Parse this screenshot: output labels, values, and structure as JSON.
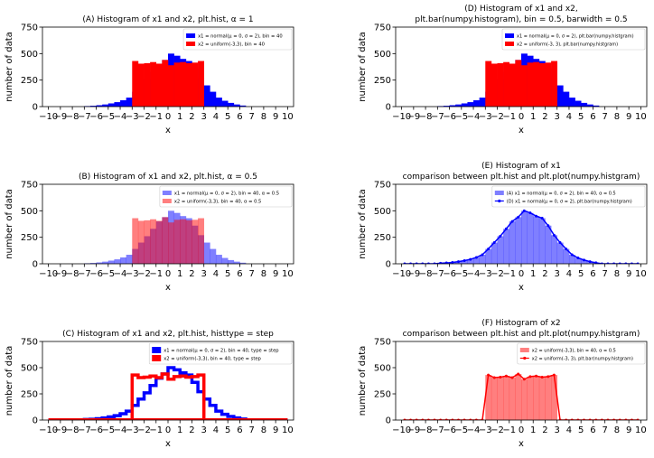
{
  "chart_data": [
    {
      "id": "A",
      "type": "bar",
      "title": [
        "(A) Histogram of x1 and x2, plt.hist, α = 1"
      ],
      "xlabel": "x",
      "ylabel": "number of data",
      "xlim": [
        -10.5,
        10.5
      ],
      "ylim": [
        0,
        750
      ],
      "xticks": [
        -10,
        -9,
        -8,
        -7,
        -6,
        -5,
        -4,
        -3,
        -2,
        -1,
        0,
        1,
        2,
        3,
        4,
        5,
        6,
        7,
        8,
        9,
        10
      ],
      "yticks": [
        0,
        250,
        500,
        750
      ],
      "legend_position": "top-right",
      "series": [
        {
          "name": "x1 = normal(μ = 0, σ = 2), bin = 40",
          "source": "x1",
          "style": "bar",
          "color": "#0000ff",
          "alpha": 1
        },
        {
          "name": "x2 = uniform(-3,3), bin = 40",
          "source": "x2",
          "style": "bar",
          "color": "#ff0000",
          "alpha": 1
        }
      ]
    },
    {
      "id": "B",
      "type": "bar",
      "title": [
        "(B) Histogram of x1 and x2, plt.hist, α = 0.5"
      ],
      "xlabel": "x",
      "ylabel": "number of data",
      "xlim": [
        -10.5,
        10.5
      ],
      "ylim": [
        0,
        750
      ],
      "xticks": [
        -10,
        -9,
        -8,
        -7,
        -6,
        -5,
        -4,
        -3,
        -2,
        -1,
        0,
        1,
        2,
        3,
        4,
        5,
        6,
        7,
        8,
        9,
        10
      ],
      "yticks": [
        0,
        250,
        500,
        750
      ],
      "legend_position": "top-right",
      "series": [
        {
          "name": "x1 = normal(μ = 0, σ = 2), bin = 40, α = 0.5",
          "source": "x1",
          "style": "bar",
          "color": "#0000ff",
          "alpha": 0.5
        },
        {
          "name": "x2 = uniform(-3,3), bin = 40, α = 0.5",
          "source": "x2",
          "style": "bar",
          "color": "#ff0000",
          "alpha": 0.5
        }
      ]
    },
    {
      "id": "C",
      "type": "bar",
      "title": [
        "(C) Histogram of x1 and x2, plt.hist, histtype = step"
      ],
      "xlabel": "x",
      "ylabel": "number of data",
      "xlim": [
        -10.5,
        10.5
      ],
      "ylim": [
        0,
        750
      ],
      "xticks": [
        -10,
        -9,
        -8,
        -7,
        -6,
        -5,
        -4,
        -3,
        -2,
        -1,
        0,
        1,
        2,
        3,
        4,
        5,
        6,
        7,
        8,
        9,
        10
      ],
      "yticks": [
        0,
        250,
        500,
        750
      ],
      "legend_position": "top-right",
      "series": [
        {
          "name": "x1 = normal(μ = 0, σ = 2), bin = 40, type = step",
          "source": "x1",
          "style": "step",
          "color": "#0000ff",
          "alpha": 1
        },
        {
          "name": "x2 = uniform(-3,3), bin = 40, type = step",
          "source": "x2",
          "style": "step",
          "color": "#ff0000",
          "alpha": 1
        }
      ]
    },
    {
      "id": "D",
      "type": "bar",
      "title": [
        "(D) Histogram of x1 and x2,",
        "plt.bar(numpy.histogram), bin = 0.5, barwidth = 0.5"
      ],
      "xlabel": "x",
      "ylabel": "number of data",
      "xlim": [
        -10.5,
        10.5
      ],
      "ylim": [
        0,
        750
      ],
      "xticks": [
        -10,
        -9,
        -8,
        -7,
        -6,
        -5,
        -4,
        -3,
        -2,
        -1,
        0,
        1,
        2,
        3,
        4,
        5,
        6,
        7,
        8,
        9,
        10
      ],
      "yticks": [
        0,
        250,
        500,
        750
      ],
      "legend_position": "top-right",
      "series": [
        {
          "name": "x1 = normal(μ = 0, σ = 2), plt.bar(numpy.histgram)",
          "source": "x1",
          "style": "bar",
          "color": "#0000ff",
          "alpha": 1
        },
        {
          "name": "x2 = uniform(-3, 3), plt.bar(numpy.histgram)",
          "source": "x2",
          "style": "bar",
          "color": "#ff0000",
          "alpha": 1
        }
      ]
    },
    {
      "id": "E",
      "type": "bar",
      "title": [
        "(E) Histogram of x1",
        "comparison between plt.hist and plt.plot(numpy.histgram)"
      ],
      "xlabel": "x",
      "ylabel": "number of data",
      "xlim": [
        -10.5,
        10.5
      ],
      "ylim": [
        0,
        750
      ],
      "xticks": [
        -10,
        -9,
        -8,
        -7,
        -6,
        -5,
        -4,
        -3,
        -2,
        -1,
        0,
        1,
        2,
        3,
        4,
        5,
        6,
        7,
        8,
        9,
        10
      ],
      "yticks": [
        0,
        250,
        500,
        750
      ],
      "legend_position": "top-right",
      "series": [
        {
          "name": "(A) x1 = normal(μ = 0, σ = 2), bin = 40, α = 0.5",
          "source": "x1",
          "style": "bar",
          "color": "#0000ff",
          "alpha": 0.5
        },
        {
          "name": "(D) x1 = normal(μ = 0, σ = 2), plt.bar(numpy.histgram)",
          "source": "x1",
          "style": "line",
          "color": "#0000ff",
          "alpha": 1
        }
      ]
    },
    {
      "id": "F",
      "type": "bar",
      "title": [
        "(F) Histogram of x2",
        "comparison between plt.hist and plt.plot(numpy.histgram)"
      ],
      "xlabel": "x",
      "ylabel": "number of data",
      "xlim": [
        -10.5,
        10.5
      ],
      "ylim": [
        0,
        750
      ],
      "xticks": [
        -10,
        -9,
        -8,
        -7,
        -6,
        -5,
        -4,
        -3,
        -2,
        -1,
        0,
        1,
        2,
        3,
        4,
        5,
        6,
        7,
        8,
        9,
        10
      ],
      "yticks": [
        0,
        250,
        500,
        750
      ],
      "legend_position": "top-right",
      "series": [
        {
          "name": "x2 = uniform(-3,3), bin = 40, α = 0.5",
          "source": "x2",
          "style": "bar",
          "color": "#ff0000",
          "alpha": 0.5
        },
        {
          "name": "x2 = uniform(-3, 3), plt.bar(numpy.histgram)",
          "source": "x2",
          "style": "line",
          "color": "#ff0000",
          "alpha": 1
        }
      ]
    }
  ],
  "histograms": {
    "bin_width": 0.5,
    "x1": {
      "bin_left_edges": [
        -7,
        -6.5,
        -6,
        -5.5,
        -5,
        -4.5,
        -4,
        -3.5,
        -3,
        -2.5,
        -2,
        -1.5,
        -1,
        -0.5,
        0,
        0.5,
        1,
        1.5,
        2,
        2.5,
        3,
        3.5,
        4,
        4.5,
        5,
        5.5,
        6
      ],
      "counts": [
        5,
        8,
        13,
        20,
        30,
        42,
        60,
        85,
        140,
        200,
        260,
        330,
        400,
        440,
        500,
        480,
        450,
        430,
        360,
        270,
        200,
        140,
        85,
        55,
        35,
        20,
        10
      ]
    },
    "x2": {
      "bin_left_edges": [
        -3,
        -2.5,
        -2,
        -1.5,
        -1,
        -0.5,
        0,
        0.5,
        1,
        1.5,
        2,
        2.5
      ],
      "counts": [
        430,
        405,
        410,
        420,
        405,
        440,
        390,
        415,
        420,
        410,
        415,
        430
      ]
    }
  }
}
